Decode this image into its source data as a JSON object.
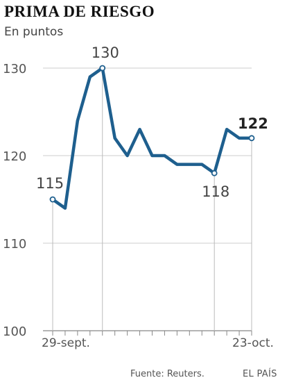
{
  "chart_data": {
    "type": "line",
    "title": "PRIMA DE RIESGO",
    "subtitle": "En puntos",
    "x_labels": [
      "29-sept.",
      "23-oct."
    ],
    "values": [
      115,
      114,
      124,
      129,
      130,
      122,
      120,
      123,
      120,
      120,
      119,
      119,
      119,
      118,
      123,
      122,
      122
    ],
    "ylim": [
      100,
      130
    ],
    "yticks": [
      100,
      110,
      120,
      130
    ],
    "annotations": [
      {
        "index": 0,
        "label": "115"
      },
      {
        "index": 4,
        "label": "130"
      },
      {
        "index": 13,
        "label": "118"
      },
      {
        "index": 16,
        "label": "122"
      }
    ],
    "line_color": "#1e5f8e",
    "grid": true
  },
  "footer": {
    "source": "Fuente: Reuters.",
    "brand": "EL PAÍS"
  }
}
